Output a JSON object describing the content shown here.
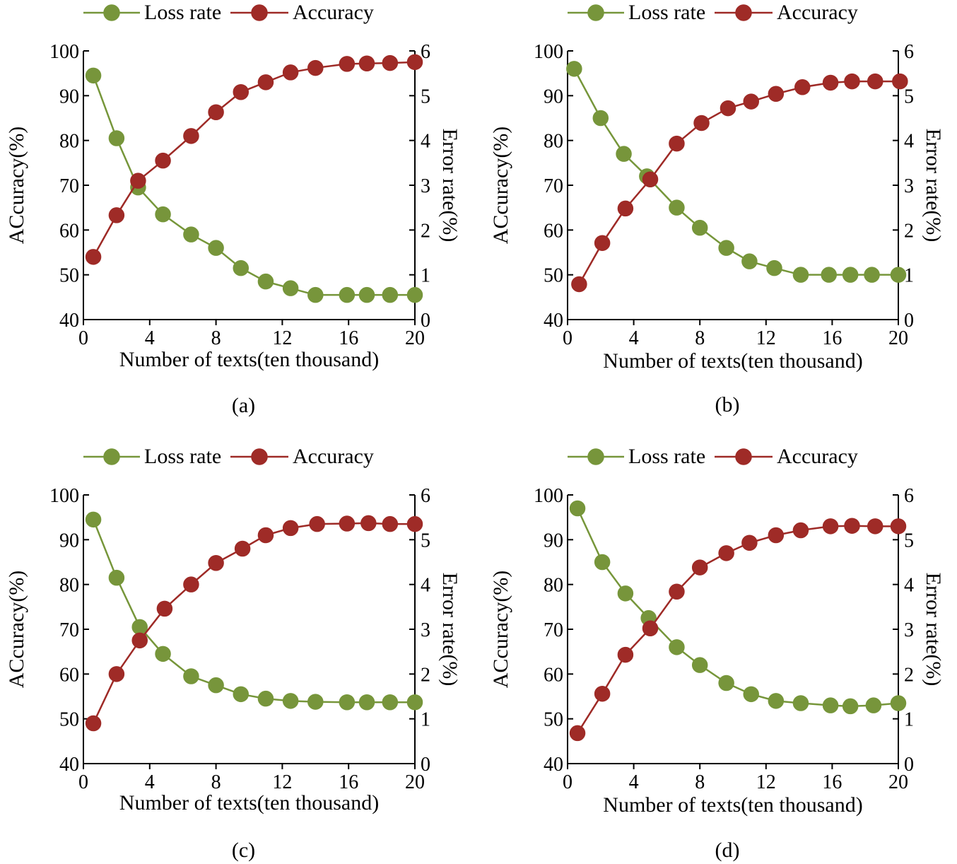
{
  "colors": {
    "loss": "#76963a",
    "loss_fill": "#77953b",
    "acc": "#9e2a26",
    "acc_fill": "#9f2b27",
    "axis": "#000000"
  },
  "chart_data": [
    {
      "type": "line",
      "panel_label": "(a)",
      "xlabel": "Number of texts(ten thousand)",
      "ylabel_left": "ACcuracy(%)",
      "ylabel_right": "Error rate(%)",
      "xlim": [
        0,
        20
      ],
      "x_ticks": [
        0,
        4,
        8,
        12,
        16,
        20
      ],
      "ylim_left": [
        40,
        100
      ],
      "y_ticks_left": [
        40,
        50,
        60,
        70,
        80,
        90,
        100
      ],
      "ylim_right": [
        0,
        6
      ],
      "y_ticks_right": [
        0,
        1,
        2,
        3,
        4,
        5,
        6
      ],
      "legend": [
        "Loss rate",
        "Accuracy"
      ],
      "series": [
        {
          "name": "Loss rate",
          "axis": "right",
          "x": [
            0.6,
            2,
            3.3,
            4.8,
            6.5,
            8,
            9.5,
            11,
            12.5,
            14,
            15.9,
            17.1,
            18.5,
            20
          ],
          "values": [
            5.45,
            4.05,
            2.95,
            2.35,
            1.9,
            1.6,
            1.15,
            0.85,
            0.7,
            0.55,
            0.55,
            0.55,
            0.55,
            0.55
          ]
        },
        {
          "name": "Accuracy",
          "axis": "left",
          "x": [
            0.6,
            2,
            3.3,
            4.8,
            6.5,
            8,
            9.5,
            11,
            12.5,
            14,
            15.9,
            17.1,
            18.5,
            20
          ],
          "values": [
            54,
            63.3,
            71,
            75.5,
            81,
            86.3,
            90.8,
            93,
            95.2,
            96.2,
            97.1,
            97.2,
            97.3,
            97.5
          ]
        }
      ]
    },
    {
      "type": "line",
      "panel_label": "(b)",
      "xlabel": "Number of texts(ten thousand)",
      "ylabel_left": "ACcuracy(%)",
      "ylabel_right": "Error rate(%)",
      "xlim": [
        0,
        20
      ],
      "x_ticks": [
        0,
        4,
        8,
        12,
        16,
        20
      ],
      "ylim_left": [
        40,
        100
      ],
      "y_ticks_left": [
        40,
        50,
        60,
        70,
        80,
        90,
        100
      ],
      "ylim_right": [
        0,
        6
      ],
      "y_ticks_right": [
        0,
        1,
        2,
        3,
        4,
        5,
        6
      ],
      "legend": [
        "Loss rate",
        "Accuracy"
      ],
      "series": [
        {
          "name": "Loss rate",
          "axis": "right",
          "x": [
            0.4,
            2,
            3.4,
            4.8,
            6.6,
            8,
            9.6,
            11,
            12.5,
            14.1,
            15.8,
            17.1,
            18.4,
            20
          ],
          "values": [
            5.6,
            4.5,
            3.7,
            3.2,
            2.5,
            2.05,
            1.6,
            1.3,
            1.15,
            1,
            1,
            1,
            1,
            1
          ]
        },
        {
          "name": "Accuracy",
          "axis": "left",
          "x": [
            0.7,
            2.1,
            3.5,
            5,
            6.6,
            8.1,
            9.7,
            11.1,
            12.6,
            14.2,
            15.9,
            17.2,
            18.6,
            20.1
          ],
          "values": [
            47.9,
            57.1,
            64.8,
            71.3,
            79.3,
            83.9,
            87.2,
            88.7,
            90.4,
            91.9,
            92.9,
            93.2,
            93.2,
            93.2
          ]
        }
      ]
    },
    {
      "type": "line",
      "panel_label": "(c)",
      "xlabel": "Number of texts(ten thousand)",
      "ylabel_left": "ACcuracy(%)",
      "ylabel_right": "Error rate(%)",
      "xlim": [
        0,
        20
      ],
      "x_ticks": [
        0,
        4,
        8,
        12,
        16,
        20
      ],
      "ylim_left": [
        40,
        100
      ],
      "y_ticks_left": [
        40,
        50,
        60,
        70,
        80,
        90,
        100
      ],
      "ylim_right": [
        0,
        6
      ],
      "y_ticks_right": [
        0,
        1,
        2,
        3,
        4,
        5,
        6
      ],
      "legend": [
        "Loss rate",
        "Accuracy"
      ],
      "series": [
        {
          "name": "Loss rate",
          "axis": "right",
          "x": [
            0.6,
            2,
            3.4,
            4.8,
            6.5,
            8,
            9.5,
            11,
            12.5,
            14,
            15.9,
            17.1,
            18.5,
            20
          ],
          "values": [
            5.45,
            4.15,
            3.05,
            2.45,
            1.95,
            1.75,
            1.55,
            1.45,
            1.4,
            1.38,
            1.37,
            1.37,
            1.37,
            1.37
          ]
        },
        {
          "name": "Accuracy",
          "axis": "left",
          "x": [
            0.6,
            2,
            3.4,
            4.9,
            6.5,
            8,
            9.6,
            11,
            12.5,
            14.1,
            15.9,
            17.2,
            18.5,
            20
          ],
          "values": [
            49,
            60,
            67.5,
            74.6,
            80,
            84.8,
            88,
            91,
            92.6,
            93.5,
            93.6,
            93.7,
            93.5,
            93.5
          ]
        }
      ]
    },
    {
      "type": "line",
      "panel_label": "(d)",
      "xlabel": "Number of texts(ten thousand)",
      "ylabel_left": "ACcuracy(%)",
      "ylabel_right": "Error rate(%)",
      "xlim": [
        0,
        20
      ],
      "x_ticks": [
        0,
        4,
        8,
        12,
        16,
        20
      ],
      "ylim_left": [
        40,
        100
      ],
      "y_ticks_left": [
        40,
        50,
        60,
        70,
        80,
        90,
        100
      ],
      "ylim_right": [
        0,
        6
      ],
      "y_ticks_right": [
        0,
        1,
        2,
        3,
        4,
        5,
        6
      ],
      "legend": [
        "Loss rate",
        "Accuracy"
      ],
      "series": [
        {
          "name": "Loss rate",
          "axis": "right",
          "x": [
            0.6,
            2.1,
            3.5,
            4.9,
            6.6,
            8,
            9.6,
            11.1,
            12.6,
            14.1,
            15.9,
            17.1,
            18.5,
            20
          ],
          "values": [
            5.7,
            4.5,
            3.8,
            3.25,
            2.6,
            2.2,
            1.8,
            1.55,
            1.4,
            1.35,
            1.3,
            1.28,
            1.3,
            1.35
          ]
        },
        {
          "name": "Accuracy",
          "axis": "left",
          "x": [
            0.6,
            2.1,
            3.5,
            5,
            6.6,
            8,
            9.6,
            11,
            12.6,
            14.1,
            15.9,
            17.2,
            18.6,
            20
          ],
          "values": [
            46.8,
            55.6,
            64.3,
            70.2,
            78.4,
            83.8,
            87,
            89.3,
            91,
            92.1,
            93,
            93.1,
            93,
            93
          ]
        }
      ]
    }
  ]
}
